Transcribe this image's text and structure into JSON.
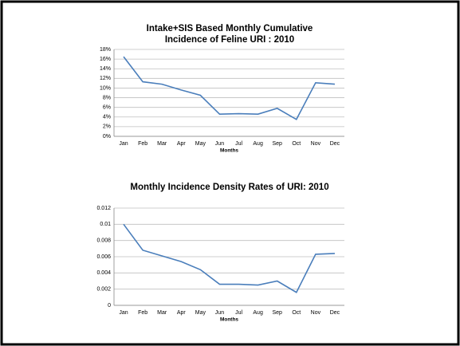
{
  "chart_data": [
    {
      "type": "line",
      "title": "Intake+SIS Based Monthly Cumulative Incidence of Feline URI : 2010",
      "x_label": "Months",
      "categories": [
        "Jan",
        "Feb",
        "Mar",
        "Apr",
        "May",
        "Jun",
        "Jul",
        "Aug",
        "Sep",
        "Oct",
        "Nov",
        "Dec"
      ],
      "values": [
        16.5,
        11.3,
        10.8,
        9.6,
        8.5,
        4.6,
        4.7,
        4.6,
        5.8,
        3.5,
        11.1,
        10.8
      ],
      "color": "#4a7ebb",
      "ylim": [
        0,
        18
      ],
      "yticks": [
        {
          "value": 0,
          "label": "0%"
        },
        {
          "value": 2,
          "label": "2%"
        },
        {
          "value": 4,
          "label": "4%"
        },
        {
          "value": 6,
          "label": "6%"
        },
        {
          "value": 8,
          "label": "8%"
        },
        {
          "value": 10,
          "label": "10%"
        },
        {
          "value": 12,
          "label": "12%"
        },
        {
          "value": 14,
          "label": "14%"
        },
        {
          "value": 16,
          "label": "16%"
        },
        {
          "value": 18,
          "label": "18%"
        }
      ],
      "grid": true
    },
    {
      "type": "line",
      "title": "Monthly Incidence Density Rates of URI:  2010",
      "x_label": "Months",
      "categories": [
        "Jan",
        "Feb",
        "Mar",
        "Apr",
        "May",
        "Jun",
        "Jul",
        "Aug",
        "Sep",
        "Oct",
        "Nov",
        "Dec"
      ],
      "values": [
        0.01,
        0.0068,
        0.0061,
        0.0054,
        0.0044,
        0.0026,
        0.0026,
        0.0025,
        0.003,
        0.0016,
        0.0063,
        0.0064
      ],
      "color": "#4a7ebb",
      "ylim": [
        0,
        0.012
      ],
      "yticks": [
        0,
        0.002,
        0.004,
        0.006,
        0.008,
        0.01,
        0.012
      ],
      "grid": true
    }
  ]
}
